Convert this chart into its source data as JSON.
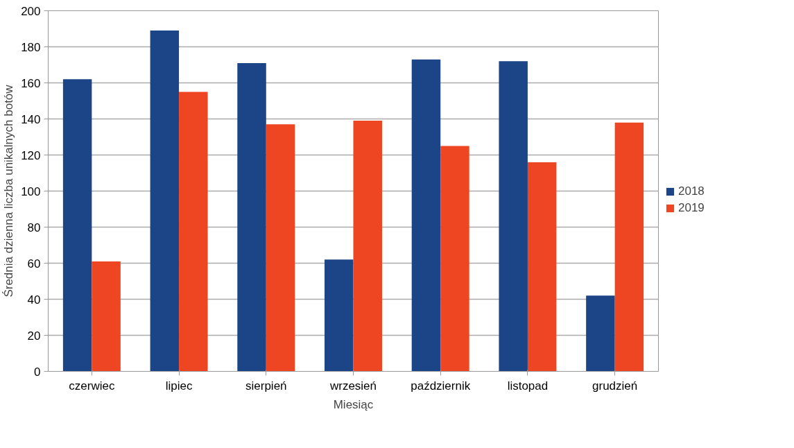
{
  "chart_data": {
    "type": "bar",
    "xlabel": "Miesiąc",
    "ylabel": "Średnia dzienna liczba unikalnych botów",
    "categories": [
      "czerwiec",
      "lipiec",
      "sierpień",
      "wrzesień",
      "październik",
      "listopad",
      "grudzień"
    ],
    "series": [
      {
        "name": "2018",
        "color": "#1b4586",
        "values": [
          162,
          189,
          171,
          62,
          173,
          172,
          42
        ]
      },
      {
        "name": "2019",
        "color": "#ee4523",
        "values": [
          61,
          155,
          137,
          139,
          125,
          116,
          138
        ]
      }
    ],
    "ylim": [
      0,
      200
    ],
    "yticks": [
      0,
      20,
      40,
      60,
      80,
      100,
      120,
      140,
      160,
      180,
      200
    ],
    "grid": "y",
    "legend": "right"
  }
}
